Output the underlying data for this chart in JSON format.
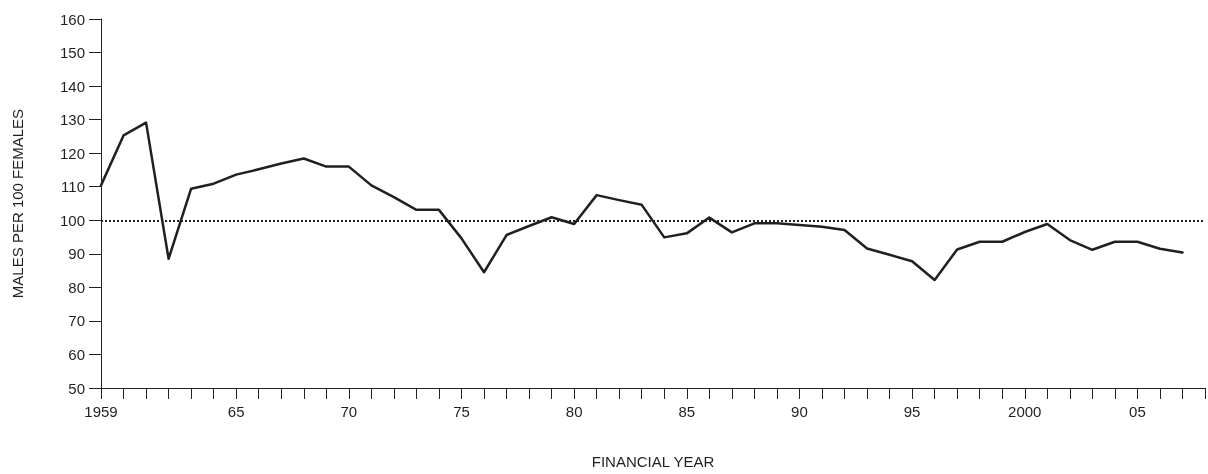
{
  "chart_data": {
    "type": "line",
    "xlabel": "FINANCIAL YEAR",
    "ylabel": "MALES PER 100 FEMALES",
    "x": [
      1959,
      1960,
      1961,
      1962,
      1963,
      1964,
      1965,
      1966,
      1967,
      1968,
      1969,
      1970,
      1971,
      1972,
      1973,
      1974,
      1975,
      1976,
      1977,
      1978,
      1979,
      1980,
      1981,
      1982,
      1983,
      1984,
      1985,
      1986,
      1987,
      1988,
      1989,
      1990,
      1991,
      1992,
      1993,
      1994,
      1995,
      1996,
      1997,
      1998,
      1999,
      2000,
      2001,
      2002,
      2003,
      2004,
      2005,
      2006,
      2007
    ],
    "series": [
      {
        "color": "#231f20",
        "values": [
          110.4,
          125.3,
          129.1,
          88.5,
          109.4,
          110.9,
          113.6,
          115.2,
          116.9,
          118.4,
          116,
          116,
          110.4,
          106.9,
          103.1,
          103.1,
          94.6,
          84.5,
          95.6,
          98.3,
          100.9,
          98.9,
          107.5,
          106,
          104.6,
          94.9,
          96.1,
          100.8,
          96.4,
          99.1,
          99.1,
          98.6,
          98.1,
          97.1,
          91.6,
          89.7,
          87.8,
          82.2,
          91.3,
          93.6,
          93.6,
          96.5,
          98.9,
          94.1,
          91.2,
          93.6,
          93.6,
          91.5,
          90.4
        ]
      }
    ],
    "xlim": [
      1959,
      2008
    ],
    "xticks": [
      1959,
      {
        "value": 1960,
        "label": null
      },
      {
        "value": 1961,
        "label": null
      },
      {
        "value": 1962,
        "label": null
      },
      {
        "value": 1963,
        "label": null
      },
      {
        "value": 1964,
        "label": null
      },
      {
        "value": 1965,
        "label": "65"
      },
      {
        "value": 1966,
        "label": null
      },
      {
        "value": 1967,
        "label": null
      },
      {
        "value": 1968,
        "label": null
      },
      {
        "value": 1969,
        "label": null
      },
      {
        "value": 1970,
        "label": "70"
      },
      {
        "value": 1971,
        "label": null
      },
      {
        "value": 1972,
        "label": null
      },
      {
        "value": 1973,
        "label": null
      },
      {
        "value": 1974,
        "label": null
      },
      {
        "value": 1975,
        "label": "75"
      },
      {
        "value": 1976,
        "label": null
      },
      {
        "value": 1977,
        "label": null
      },
      {
        "value": 1978,
        "label": null
      },
      {
        "value": 1979,
        "label": null
      },
      {
        "value": 1980,
        "label": "80"
      },
      {
        "value": 1981,
        "label": null
      },
      {
        "value": 1982,
        "label": null
      },
      {
        "value": 1983,
        "label": null
      },
      {
        "value": 1984,
        "label": null
      },
      {
        "value": 1985,
        "label": "85"
      },
      {
        "value": 1986,
        "label": null
      },
      {
        "value": 1987,
        "label": null
      },
      {
        "value": 1988,
        "label": null
      },
      {
        "value": 1989,
        "label": null
      },
      {
        "value": 1990,
        "label": "90"
      },
      {
        "value": 1991,
        "label": null
      },
      {
        "value": 1992,
        "label": null
      },
      {
        "value": 1993,
        "label": null
      },
      {
        "value": 1994,
        "label": null
      },
      {
        "value": 1995,
        "label": "95"
      },
      {
        "value": 1996,
        "label": null
      },
      {
        "value": 1997,
        "label": null
      },
      {
        "value": 1998,
        "label": null
      },
      {
        "value": 1999,
        "label": null
      },
      2000,
      {
        "value": 2001,
        "label": null
      },
      {
        "value": 2002,
        "label": null
      },
      {
        "value": 2003,
        "label": null
      },
      {
        "value": 2004,
        "label": null
      },
      {
        "value": 2005,
        "label": "05"
      },
      {
        "value": 2006,
        "label": null
      },
      {
        "value": 2007,
        "label": null
      },
      {
        "value": 2008,
        "label": null
      }
    ],
    "ylim": [
      50,
      160
    ],
    "yticks": [
      50,
      60,
      70,
      80,
      90,
      100,
      110,
      120,
      130,
      140,
      150,
      160
    ],
    "ref_lines": [
      {
        "axis": "y",
        "value": 100,
        "line_style": "dotted",
        "color": "#231f20"
      }
    ],
    "marker": "none",
    "line_style": "solid"
  }
}
